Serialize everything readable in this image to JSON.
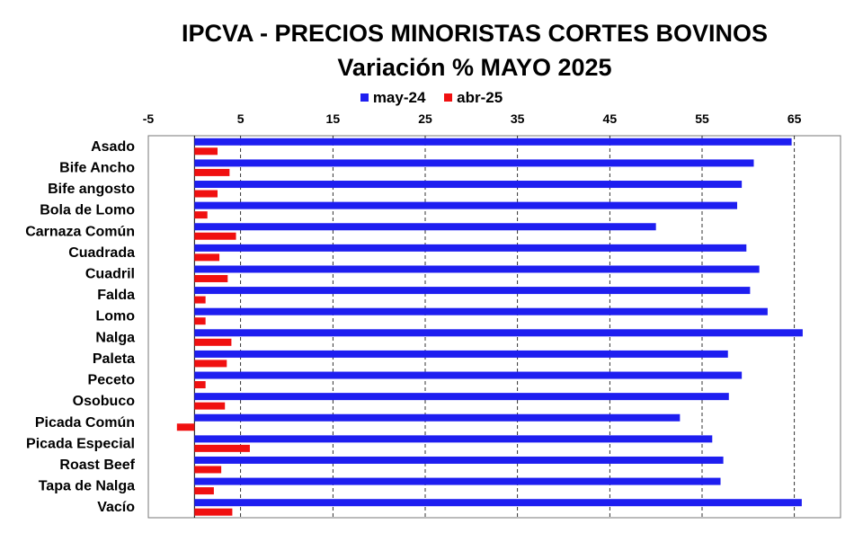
{
  "chart_data": {
    "type": "bar",
    "orientation": "horizontal",
    "title": "IPCVA - PRECIOS MINORISTAS CORTES BOVINOS",
    "subtitle": "Variación % MAYO  2025",
    "categories": [
      "Asado",
      "Bife Ancho",
      "Bife angosto",
      "Bola de Lomo",
      "Carnaza Común",
      "Cuadrada",
      "Cuadril",
      "Falda",
      "Lomo",
      "Nalga",
      "Paleta",
      "Peceto",
      "Osobuco",
      "Picada Común",
      "Picada Especial",
      "Roast Beef",
      "Tapa de Nalga",
      "Vacío"
    ],
    "series": [
      {
        "name": "may-24",
        "color": "#1e1ef0",
        "values": [
          64.7,
          60.6,
          59.3,
          58.8,
          50.0,
          59.8,
          61.2,
          60.2,
          62.1,
          65.9,
          57.8,
          59.3,
          57.9,
          52.6,
          56.1,
          57.3,
          57.0,
          65.8
        ]
      },
      {
        "name": "abr-25",
        "color": "#f01010",
        "values": [
          2.5,
          3.8,
          2.5,
          1.4,
          4.5,
          2.7,
          3.6,
          1.2,
          1.2,
          4.0,
          3.5,
          1.2,
          3.3,
          -1.9,
          6.0,
          2.9,
          2.1,
          4.1
        ]
      }
    ],
    "xlim": [
      -5,
      70
    ],
    "x_ticks": [
      -5,
      5,
      15,
      25,
      35,
      45,
      55,
      65
    ],
    "xlabel": "",
    "ylabel": "",
    "grid": "vertical-dashed",
    "legend": "top-center",
    "x_axis_position": "top"
  }
}
